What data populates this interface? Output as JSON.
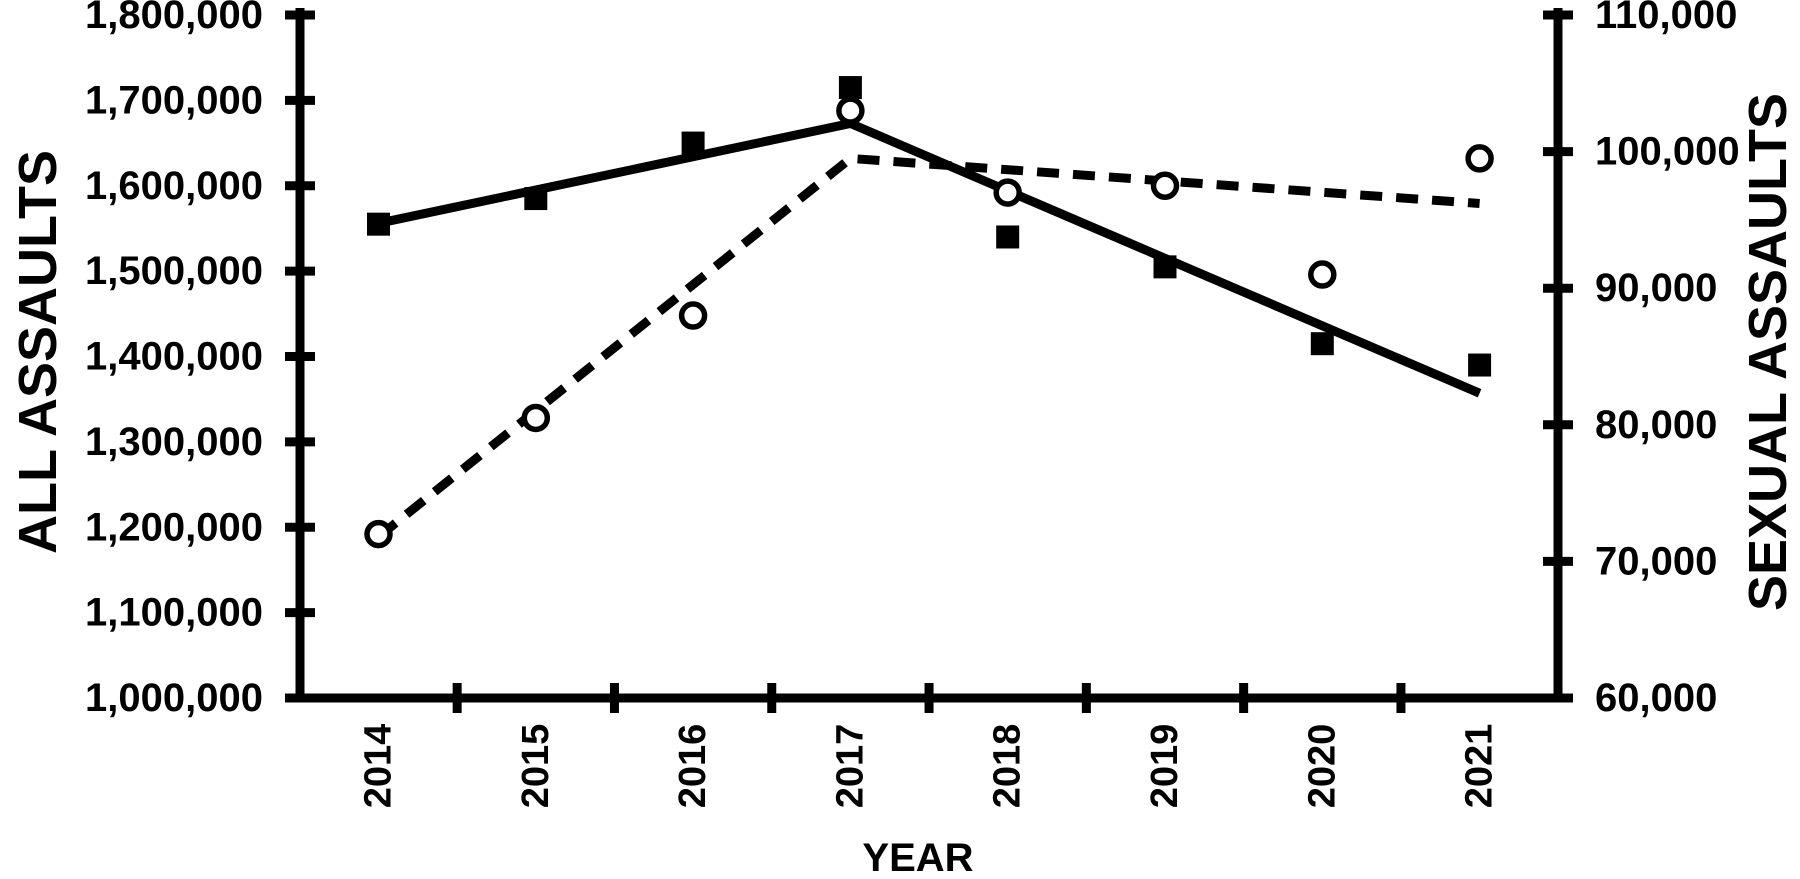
{
  "chart_data": {
    "type": "scatter",
    "title": "",
    "x": [
      2014,
      2015,
      2016,
      2017,
      2018,
      2019,
      2020,
      2021
    ],
    "series": [
      {
        "name": "ALL ASSAULTS",
        "axis": "left",
        "marker": "filled-square",
        "values": [
          1555000,
          1585000,
          1650000,
          1715000,
          1540000,
          1505000,
          1415000,
          1390000
        ]
      },
      {
        "name": "SEXUAL ASSAULTS",
        "axis": "right",
        "marker": "open-circle",
        "values": [
          72000,
          80500,
          88000,
          103000,
          97000,
          97500,
          91000,
          99500
        ]
      }
    ],
    "trend_lines": [
      {
        "series": "ALL ASSAULTS",
        "style": "solid",
        "axis": "left",
        "points": [
          [
            2014,
            1556000
          ],
          [
            2017,
            1673000
          ],
          [
            2021,
            1357000
          ]
        ]
      },
      {
        "series": "SEXUAL ASSAULTS",
        "style": "dashed",
        "axis": "right",
        "points": [
          [
            2014,
            71800
          ],
          [
            2017,
            99500
          ],
          [
            2021,
            96200
          ]
        ]
      }
    ],
    "left_axis": {
      "label": "ALL ASSAULTS",
      "min": 1000000,
      "max": 1800000,
      "step": 100000,
      "tick_labels": [
        "1,000,000",
        "1,100,000",
        "1,200,000",
        "1,300,000",
        "1,400,000",
        "1,500,000",
        "1,600,000",
        "1,700,000",
        "1,800,000"
      ]
    },
    "right_axis": {
      "label": "SEXUAL ASSAULTS",
      "min": 60000,
      "max": 110000,
      "step": 10000,
      "tick_labels": [
        "60,000",
        "70,000",
        "80,000",
        "90,000",
        "100,000",
        "110,000"
      ]
    },
    "x_axis": {
      "label": "YEAR",
      "tick_labels": [
        "2014",
        "2015",
        "2016",
        "2017",
        "2018",
        "2019",
        "2020",
        "2021"
      ]
    },
    "grid": false,
    "legend": "none",
    "colors": {
      "foreground": "#000000",
      "background": "#ffffff"
    }
  }
}
